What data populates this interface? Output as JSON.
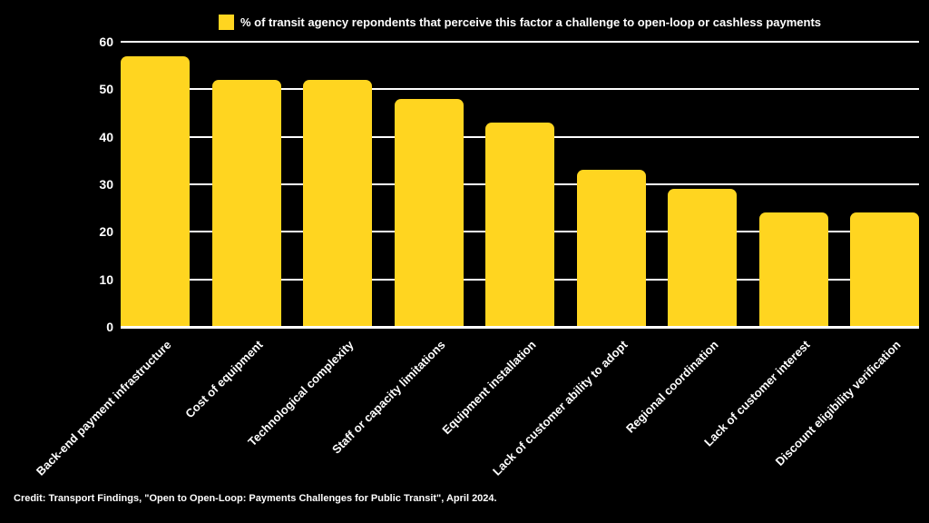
{
  "legend": {
    "label": "% of transit agency repondents that perceive this factor a challenge to open-loop or cashless payments"
  },
  "credit": "Credit: Transport Findings, \"Open to Open-Loop: Payments Challenges for Public Transit\", April 2024.",
  "colors": {
    "bar": "#FFD520",
    "background": "#000000",
    "text": "#FFFFFF",
    "gridline": "#FFFFFF"
  },
  "chart_data": {
    "type": "bar",
    "title": "",
    "legend": "% of transit agency repondents that perceive this factor a challenge to open-loop or cashless payments",
    "categories": [
      "Back-end payment infrastructure",
      "Cost of equipment",
      "Technological complexity",
      "Staff or capacity limitations",
      "Equipment installation",
      "Lack of customer ability to adopt",
      "Regional coordination",
      "Lack of customer interest",
      "Discount eligibility verification"
    ],
    "values": [
      57,
      52,
      52,
      48,
      43,
      33,
      29,
      24,
      24
    ],
    "xlabel": "",
    "ylabel": "",
    "ylim": [
      0,
      60
    ],
    "yticks": [
      0,
      10,
      20,
      30,
      40,
      50,
      60
    ],
    "grid": true,
    "legend_position": "top-center",
    "bar_color": "#FFD520"
  }
}
